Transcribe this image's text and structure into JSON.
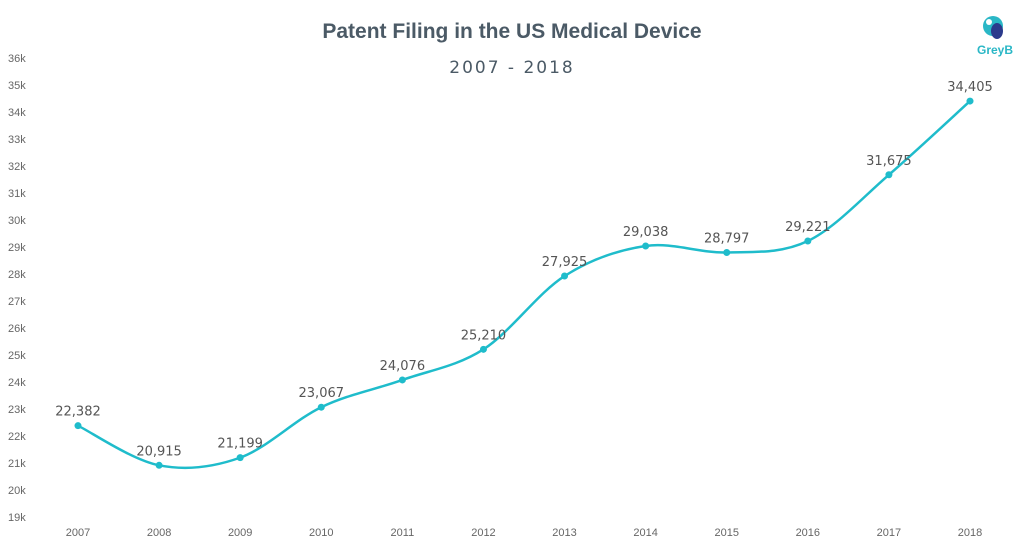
{
  "title": "Patent Filing in the US Medical Device",
  "subtitle": "2007 - 2018",
  "logo": {
    "text": "GreyB",
    "color": "#2ab7c6",
    "accent": "#2b3a8c"
  },
  "colors": {
    "line": "#1fbccb",
    "marker": "#1fbccb",
    "text": "#555555"
  },
  "chart_data": {
    "type": "line",
    "title": "Patent Filing in the US Medical Device",
    "subtitle": "2007 - 2018",
    "xlabel": "",
    "ylabel": "",
    "x": [
      "2007",
      "2008",
      "2009",
      "2010",
      "2011",
      "2012",
      "2013",
      "2014",
      "2015",
      "2016",
      "2017",
      "2018"
    ],
    "series": [
      {
        "values": [
          22382,
          20915,
          21199,
          23067,
          24076,
          25210,
          27925,
          29038,
          28797,
          29221,
          31675,
          34405
        ],
        "labels": [
          "22,382",
          "20,915",
          "21,199",
          "23,067",
          "24,076",
          "25,210",
          "27,925",
          "29,038",
          "28,797",
          "29,221",
          "31,675",
          "34,405"
        ]
      }
    ],
    "ylim": [
      19000,
      36000
    ],
    "y_ticks": [
      19000,
      20000,
      21000,
      22000,
      23000,
      24000,
      25000,
      26000,
      27000,
      28000,
      29000,
      30000,
      31000,
      32000,
      33000,
      34000,
      35000,
      36000
    ],
    "y_tick_labels": [
      "19k",
      "20k",
      "21k",
      "22k",
      "23k",
      "24k",
      "25k",
      "26k",
      "27k",
      "28k",
      "29k",
      "30k",
      "31k",
      "32k",
      "33k",
      "34k",
      "35k",
      "36k"
    ],
    "grid": false,
    "smooth": true
  }
}
